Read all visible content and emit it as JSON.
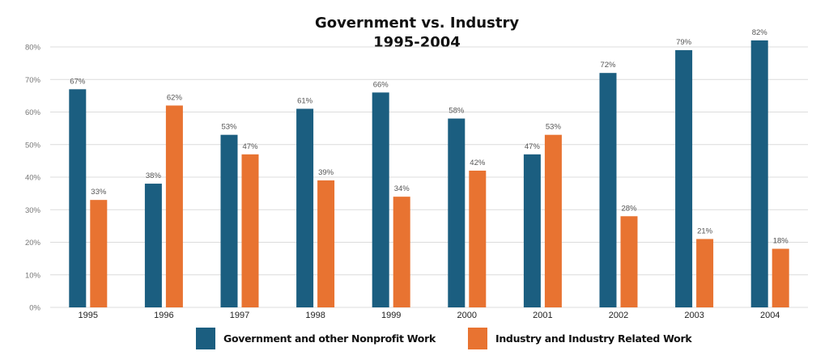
{
  "chart_data": {
    "type": "bar",
    "title": "Government vs. Industry",
    "subtitle": "1995-2004",
    "xlabel": "",
    "ylabel": "",
    "categories": [
      "1995",
      "1996",
      "1997",
      "1998",
      "1999",
      "2000",
      "2001",
      "2002",
      "2003",
      "2004"
    ],
    "series": [
      {
        "name": "Government and other Nonprofit Work",
        "color": "#1b5e80",
        "values": [
          67,
          38,
          53,
          61,
          66,
          58,
          47,
          72,
          79,
          82
        ]
      },
      {
        "name": "Industry and Industry Related Work",
        "color": "#e87331",
        "values": [
          33,
          62,
          47,
          39,
          34,
          42,
          53,
          28,
          21,
          18
        ]
      }
    ],
    "ylim": [
      0,
      80
    ],
    "yticks": [
      0,
      10,
      20,
      30,
      40,
      50,
      60,
      70,
      80
    ],
    "ytick_labels": [
      "0%",
      "10%",
      "20%",
      "30%",
      "40%",
      "50%",
      "60%",
      "70%",
      "80%"
    ],
    "value_suffix": "%",
    "grid": true,
    "legend_position": "bottom"
  }
}
